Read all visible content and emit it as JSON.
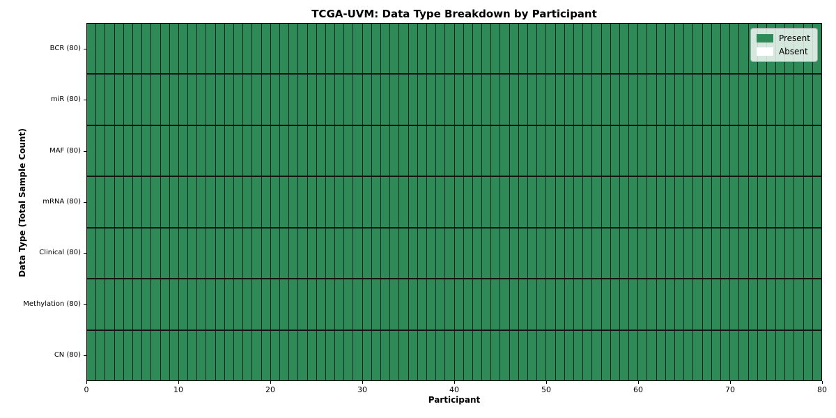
{
  "title": "TCGA-UVM: Data Type Breakdown by Participant",
  "colors": {
    "present": "#2e8b57",
    "absent": "#ffffff",
    "cell_edge": "#1f1f1f",
    "spine": "#000000"
  },
  "chart_data": {
    "type": "heatmap",
    "title": "TCGA-UVM: Data Type Breakdown by Participant",
    "xlabel": "Participant",
    "ylabel": "Data Type (Total Sample Count)",
    "x_range": [
      0,
      80
    ],
    "x_ticks": [
      0,
      10,
      20,
      30,
      40,
      50,
      60,
      70,
      80
    ],
    "n_participants": 80,
    "grid": false,
    "legend_position": "upper right",
    "legend": [
      {
        "key": "present",
        "label": "Present",
        "color": "#2e8b57"
      },
      {
        "key": "absent",
        "label": "Absent",
        "color": "#ffffff"
      }
    ],
    "rows": [
      {
        "key": "bcr",
        "label": "BCR (80)",
        "total": 80,
        "present": 80,
        "absent": 0
      },
      {
        "key": "mir",
        "label": "miR (80)",
        "total": 80,
        "present": 80,
        "absent": 0
      },
      {
        "key": "maf",
        "label": "MAF (80)",
        "total": 80,
        "present": 80,
        "absent": 0
      },
      {
        "key": "mrna",
        "label": "mRNA (80)",
        "total": 80,
        "present": 80,
        "absent": 0
      },
      {
        "key": "clinical",
        "label": "Clinical (80)",
        "total": 80,
        "present": 80,
        "absent": 0
      },
      {
        "key": "methylation",
        "label": "Methylation (80)",
        "total": 80,
        "present": 80,
        "absent": 0
      },
      {
        "key": "cn",
        "label": "CN (80)",
        "total": 80,
        "present": 80,
        "absent": 0
      }
    ]
  }
}
